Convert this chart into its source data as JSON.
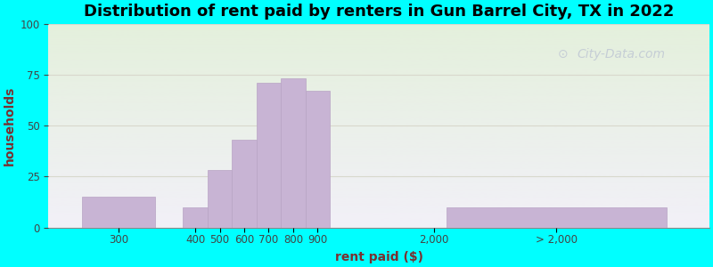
{
  "title": "Distribution of rent paid by renters in Gun Barrel City, TX in 2022",
  "xlabel": "rent paid ($)",
  "ylabel": "households",
  "ylim": [
    0,
    100
  ],
  "yticks": [
    0,
    25,
    50,
    75,
    100
  ],
  "background_color": "#00FFFF",
  "bar_color": "#c8b4d4",
  "bar_edge_color": "#b8a4c4",
  "values": [
    15,
    10,
    28,
    43,
    71,
    73,
    67,
    10
  ],
  "title_fontsize": 13,
  "axis_label_fontsize": 10,
  "tick_fontsize": 8.5,
  "watermark": "City-Data.com",
  "grid_color": "#d8d8cc",
  "ylabel_color": "#7a3030",
  "xlabel_color": "#7a3030",
  "title_color": "#000000"
}
